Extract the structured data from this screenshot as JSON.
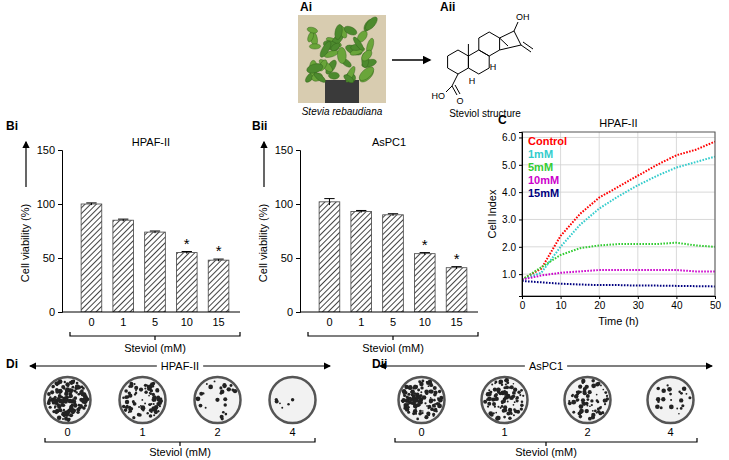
{
  "figure": {
    "panel_labels": [
      "Ai",
      "Aii",
      "Bi",
      "Bii",
      "C",
      "Di",
      "Dii"
    ],
    "photo_caption": "Stevia rebaudiana",
    "structure_caption": "Steviol structure",
    "structure_labels": [
      "OH",
      "H",
      "H",
      "HO",
      "O"
    ],
    "colony_assays": [
      {
        "title": "HPAF-II",
        "xlabel": "Steviol (mM)",
        "doses": [
          0,
          1,
          2,
          4
        ]
      },
      {
        "title": "AsPC1",
        "xlabel": "Steviol (mM)",
        "doses": [
          0,
          1,
          2,
          4
        ]
      }
    ]
  },
  "chart_data": [
    {
      "type": "bar",
      "title": "HPAF-II",
      "xlabel": "Steviol (mM)",
      "ylabel": "Cell viability (%)",
      "categories": [
        "0",
        "1",
        "5",
        "10",
        "15"
      ],
      "values": [
        100,
        85,
        74,
        55,
        48
      ],
      "errors": [
        1,
        1,
        1,
        1,
        1
      ],
      "color": "#444444",
      "ylim": [
        0,
        150
      ],
      "yticks": [
        0,
        50,
        100,
        150
      ],
      "annotations": [
        {
          "category": "10",
          "text": "*"
        },
        {
          "category": "15",
          "text": "*"
        }
      ]
    },
    {
      "type": "bar",
      "title": "AsPC1",
      "xlabel": "Steviol (mM)",
      "ylabel": "Cell viability (%)",
      "categories": [
        "0",
        "1",
        "5",
        "10",
        "15"
      ],
      "values": [
        102,
        93,
        90,
        54,
        41
      ],
      "errors": [
        3,
        1,
        1,
        1,
        1
      ],
      "color": "#444444",
      "ylim": [
        0,
        150
      ],
      "yticks": [
        0,
        50,
        100,
        150
      ],
      "annotations": [
        {
          "category": "10",
          "text": "*"
        },
        {
          "category": "15",
          "text": "*"
        }
      ]
    },
    {
      "type": "line",
      "title": "HPAF-II",
      "xlabel": "Time (h)",
      "ylabel": "Cell Index",
      "x": [
        0,
        5,
        10,
        15,
        20,
        25,
        30,
        35,
        40,
        45,
        50
      ],
      "series": [
        {
          "name": "Control",
          "color": "#ff0000",
          "values": [
            0.8,
            1.2,
            2.4,
            3.2,
            3.8,
            4.2,
            4.6,
            5.0,
            5.35,
            5.55,
            5.85
          ]
        },
        {
          "name": "1mM",
          "color": "#33cccc",
          "values": [
            0.8,
            1.05,
            2.0,
            2.8,
            3.4,
            3.85,
            4.25,
            4.6,
            4.9,
            5.1,
            5.3
          ]
        },
        {
          "name": "5mM",
          "color": "#33cc33",
          "values": [
            0.8,
            1.25,
            1.7,
            1.95,
            2.05,
            2.1,
            2.1,
            2.1,
            2.15,
            2.05,
            2.0
          ]
        },
        {
          "name": "10mM",
          "color": "#cc00cc",
          "values": [
            0.8,
            0.95,
            1.05,
            1.1,
            1.15,
            1.15,
            1.15,
            1.15,
            1.15,
            1.1,
            1.1
          ]
        },
        {
          "name": "15mM",
          "color": "#000080",
          "values": [
            0.75,
            0.7,
            0.65,
            0.62,
            0.6,
            0.6,
            0.58,
            0.58,
            0.57,
            0.56,
            0.55
          ]
        }
      ],
      "xlim": [
        0,
        50
      ],
      "xticks": [
        0,
        10,
        20,
        30,
        40,
        50
      ],
      "ylim": [
        0.2,
        6.2
      ],
      "yticks": [
        {
          "value": 1,
          "label": "1.0"
        },
        {
          "value": 2,
          "label": "2.0"
        },
        {
          "value": 3,
          "label": "3.0"
        },
        {
          "value": 4,
          "label": "4.0"
        },
        {
          "value": 5,
          "label": "5.0"
        },
        {
          "value": 6,
          "label": "6.0"
        }
      ],
      "grid": true,
      "legend": "upper left",
      "line_style": "dotted"
    }
  ]
}
